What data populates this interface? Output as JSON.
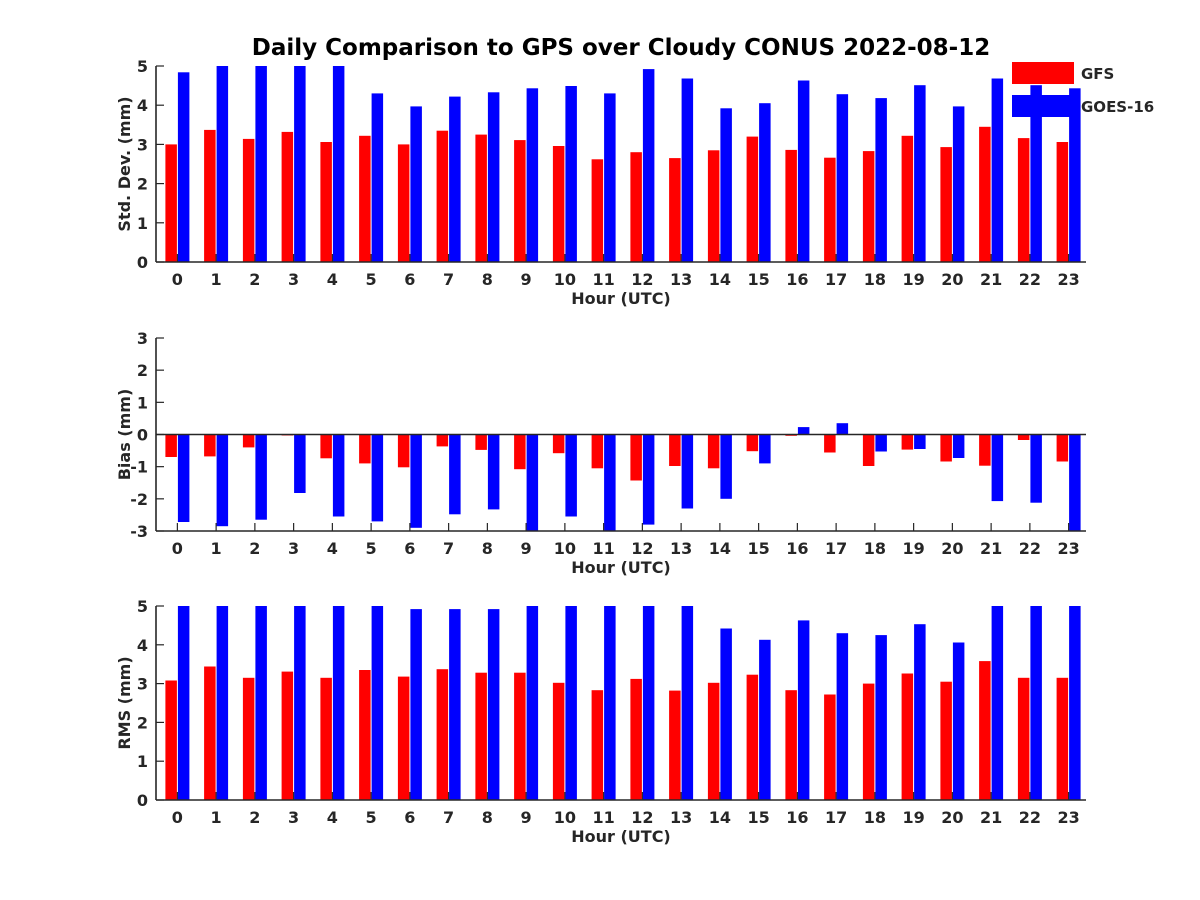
{
  "title": "Daily Comparison to GPS over Cloudy CONUS 2022-08-12",
  "colors": {
    "GFS": "#ff0000",
    "GOES-16": "#0000ff",
    "axis": "#262626",
    "text": "#262626"
  },
  "legend": {
    "placement": "top-right",
    "items": [
      "GFS",
      "GOES-16"
    ]
  },
  "chart_data": [
    {
      "type": "bar",
      "title": "Daily Comparison to GPS over Cloudy CONUS 2022-08-12",
      "xlabel": "Hour (UTC)",
      "ylabel": "Std. Dev. (mm)",
      "ylim": [
        0,
        5
      ],
      "yticks": [
        0,
        1,
        2,
        3,
        4,
        5
      ],
      "categories": [
        "0",
        "1",
        "2",
        "3",
        "4",
        "5",
        "6",
        "7",
        "8",
        "9",
        "10",
        "11",
        "12",
        "13",
        "14",
        "15",
        "16",
        "17",
        "18",
        "19",
        "20",
        "21",
        "22",
        "23"
      ],
      "series": [
        {
          "name": "GFS",
          "values": [
            3.0,
            3.37,
            3.14,
            3.32,
            3.06,
            3.22,
            3.0,
            3.35,
            3.25,
            3.11,
            2.96,
            2.62,
            2.8,
            2.65,
            2.85,
            3.2,
            2.86,
            2.66,
            2.83,
            3.22,
            2.93,
            3.45,
            3.16,
            3.06
          ]
        },
        {
          "name": "GOES-16",
          "values": [
            4.84,
            5.0,
            5.0,
            5.0,
            5.0,
            4.3,
            3.97,
            4.22,
            4.33,
            4.43,
            4.49,
            4.3,
            4.92,
            4.68,
            3.92,
            4.05,
            4.63,
            4.28,
            4.18,
            4.51,
            3.97,
            4.68,
            4.51,
            4.43
          ]
        }
      ],
      "grid": false
    },
    {
      "type": "bar",
      "xlabel": "Hour (UTC)",
      "ylabel": "Bias (mm)",
      "ylim": [
        -3,
        3
      ],
      "yticks": [
        -3,
        -2,
        -1,
        0,
        1,
        2,
        3
      ],
      "categories": [
        "0",
        "1",
        "2",
        "3",
        "4",
        "5",
        "6",
        "7",
        "8",
        "9",
        "10",
        "11",
        "12",
        "13",
        "14",
        "15",
        "16",
        "17",
        "18",
        "19",
        "20",
        "21",
        "22",
        "23"
      ],
      "series": [
        {
          "name": "GFS",
          "values": [
            -0.7,
            -0.68,
            -0.4,
            -0.03,
            -0.74,
            -0.9,
            -1.02,
            -0.37,
            -0.48,
            -1.08,
            -0.58,
            -1.05,
            -1.43,
            -0.98,
            -1.05,
            -0.52,
            -0.04,
            -0.56,
            -0.98,
            -0.47,
            -0.84,
            -0.97,
            -0.17,
            -0.84
          ]
        },
        {
          "name": "GOES-16",
          "values": [
            -2.72,
            -2.85,
            -2.65,
            -1.82,
            -2.55,
            -2.7,
            -2.9,
            -2.48,
            -2.33,
            -3.0,
            -2.55,
            -3.0,
            -2.8,
            -2.3,
            -2.0,
            -0.9,
            0.23,
            0.35,
            -0.53,
            -0.45,
            -0.73,
            -2.07,
            -2.12,
            -3.0
          ]
        }
      ],
      "grid": false
    },
    {
      "type": "bar",
      "xlabel": "Hour (UTC)",
      "ylabel": "RMS (mm)",
      "ylim": [
        0,
        5
      ],
      "yticks": [
        0,
        1,
        2,
        3,
        4,
        5
      ],
      "categories": [
        "0",
        "1",
        "2",
        "3",
        "4",
        "5",
        "6",
        "7",
        "8",
        "9",
        "10",
        "11",
        "12",
        "13",
        "14",
        "15",
        "16",
        "17",
        "18",
        "19",
        "20",
        "21",
        "22",
        "23"
      ],
      "series": [
        {
          "name": "GFS",
          "values": [
            3.08,
            3.44,
            3.15,
            3.31,
            3.15,
            3.35,
            3.18,
            3.37,
            3.28,
            3.28,
            3.02,
            2.83,
            3.12,
            2.82,
            3.02,
            3.23,
            2.83,
            2.72,
            3.0,
            3.26,
            3.05,
            3.58,
            3.15,
            3.15
          ]
        },
        {
          "name": "GOES-16",
          "values": [
            5.0,
            5.0,
            5.0,
            5.0,
            5.0,
            5.0,
            4.92,
            4.92,
            4.92,
            5.0,
            5.0,
            5.0,
            5.0,
            5.0,
            4.42,
            4.13,
            4.63,
            4.3,
            4.25,
            4.53,
            4.06,
            5.0,
            5.0,
            5.0
          ]
        }
      ],
      "grid": false
    }
  ]
}
